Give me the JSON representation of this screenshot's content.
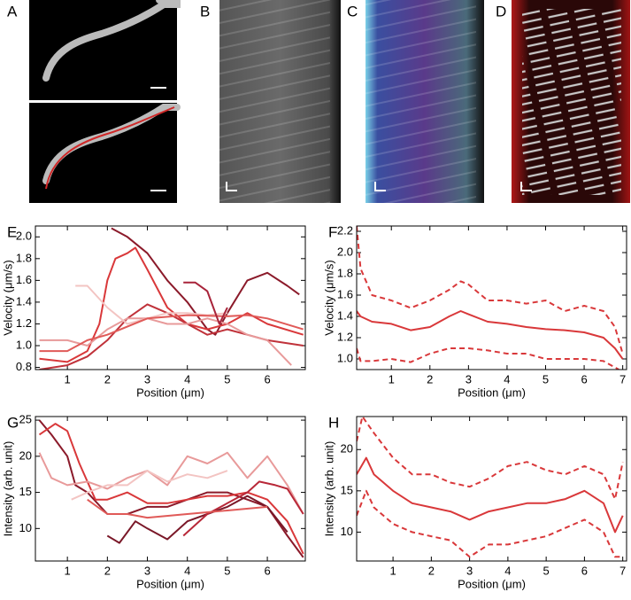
{
  "image_panels": [
    {
      "label": "A"
    },
    {
      "label": "B"
    },
    {
      "label": "C"
    },
    {
      "label": "D"
    }
  ],
  "chart_data": [
    {
      "type": "line",
      "panel": "E",
      "xlabel": "Position (μm)",
      "ylabel": "Velocity (μm/s)",
      "xlim": [
        0.2,
        6.95
      ],
      "xticks": [
        1,
        2,
        3,
        4,
        5,
        6
      ],
      "ylim": [
        0.78,
        2.1
      ],
      "yticks": [
        0.8,
        {
          "value": 1,
          "label": "1.0"
        },
        1.2,
        1.4,
        1.6,
        1.8,
        {
          "value": 2,
          "label": "2.0"
        }
      ],
      "series": [
        {
          "color": "#8b1a2a",
          "x": [
            2.1,
            2.5,
            3,
            3.5,
            4,
            4.5,
            4.7,
            5,
            5.5,
            6,
            6.5,
            6.8
          ],
          "values": [
            2.08,
            2.0,
            1.85,
            1.6,
            1.4,
            1.15,
            1.1,
            1.3,
            1.6,
            1.67,
            1.55,
            1.47
          ]
        },
        {
          "color": "#d9383a",
          "x": [
            0.3,
            1,
            1.5,
            1.8,
            2,
            2.2,
            2.5,
            2.7,
            3,
            3.5,
            4,
            4.5,
            5,
            5.5,
            6,
            6.9
          ],
          "values": [
            0.88,
            0.85,
            0.95,
            1.2,
            1.6,
            1.8,
            1.85,
            1.9,
            1.7,
            1.35,
            1.2,
            1.15,
            1.2,
            1.3,
            1.2,
            1.1
          ]
        },
        {
          "color": "#c0323a",
          "x": [
            0.3,
            1,
            1.5,
            2,
            2.5,
            3,
            3.5,
            4,
            4.5,
            5,
            5.5,
            6,
            6.9
          ],
          "values": [
            0.78,
            0.82,
            0.9,
            1.05,
            1.25,
            1.38,
            1.3,
            1.2,
            1.1,
            1.15,
            1.1,
            1.05,
            1.0
          ]
        },
        {
          "color": "#e89a9a",
          "x": [
            0.3,
            1,
            1.5,
            2,
            2.5,
            3,
            3.5,
            4,
            4.5,
            5,
            5.5,
            6,
            6.6
          ],
          "values": [
            1.05,
            1.05,
            1.0,
            1.15,
            1.25,
            1.25,
            1.2,
            1.2,
            1.25,
            1.2,
            1.1,
            1.05,
            0.82
          ]
        },
        {
          "color": "#f3c4c2",
          "x": [
            1.2,
            1.5,
            2,
            2.5,
            3,
            3.5,
            4,
            4.5,
            5
          ],
          "values": [
            1.55,
            1.55,
            1.35,
            1.2,
            1.25,
            1.3,
            1.3,
            1.28,
            1.3
          ]
        },
        {
          "color": "#e05a58",
          "x": [
            0.3,
            1,
            1.5,
            2,
            3,
            4,
            5,
            5.5,
            6,
            6.9
          ],
          "values": [
            0.95,
            0.95,
            1.05,
            1.1,
            1.25,
            1.28,
            1.27,
            1.28,
            1.25,
            1.15
          ]
        },
        {
          "color": "#a8243a",
          "x": [
            3.9,
            4.2,
            4.5,
            4.8,
            5
          ],
          "values": [
            1.58,
            1.58,
            1.5,
            1.2,
            1.35
          ]
        }
      ]
    },
    {
      "type": "line",
      "panel": "F",
      "xlabel": "Position (μm)",
      "ylabel": "Velocity (μm/s)",
      "xlim": [
        0.1,
        7.1
      ],
      "xticks": [
        1,
        2,
        3,
        4,
        5,
        6,
        7
      ],
      "ylim": [
        0.9,
        2.25
      ],
      "yticks": [
        {
          "value": 1,
          "label": "1.0"
        },
        1.2,
        1.4,
        1.6,
        1.8,
        {
          "value": 2,
          "label": "2.0"
        },
        2.2
      ],
      "series": [
        {
          "color": "#d9383a",
          "x": [
            0.1,
            0.2,
            0.5,
            1,
            1.5,
            2,
            2.5,
            2.8,
            3,
            3.5,
            4,
            4.5,
            5,
            5.5,
            6,
            6.5,
            6.8,
            7
          ],
          "values": [
            1.45,
            1.4,
            1.35,
            1.33,
            1.27,
            1.3,
            1.4,
            1.45,
            1.42,
            1.35,
            1.33,
            1.3,
            1.28,
            1.27,
            1.25,
            1.2,
            1.1,
            1.0
          ]
        },
        {
          "color": "#d9383a",
          "dashed": true,
          "x": [
            0.1,
            0.2,
            0.5,
            1,
            1.5,
            2,
            2.5,
            2.8,
            3,
            3.5,
            4,
            4.5,
            5,
            5.5,
            6,
            6.5,
            6.8,
            7
          ],
          "values": [
            2.25,
            1.85,
            1.6,
            1.55,
            1.48,
            1.55,
            1.65,
            1.73,
            1.7,
            1.55,
            1.55,
            1.52,
            1.55,
            1.45,
            1.5,
            1.45,
            1.3,
            1.05
          ]
        },
        {
          "color": "#d9383a",
          "dashed": true,
          "x": [
            0.1,
            0.2,
            0.5,
            1,
            1.5,
            2,
            2.5,
            3,
            3.5,
            4,
            4.5,
            5,
            5.5,
            6,
            6.5,
            6.9
          ],
          "values": [
            1.1,
            0.98,
            0.98,
            1.0,
            0.97,
            1.05,
            1.1,
            1.1,
            1.08,
            1.05,
            1.05,
            1.0,
            1.0,
            1.0,
            0.98,
            0.9
          ]
        }
      ]
    },
    {
      "type": "line",
      "panel": "G",
      "xlabel": "Position (μm)",
      "ylabel": "Intensity (arb. unit)",
      "xlim": [
        0.2,
        6.95
      ],
      "xticks": [
        1,
        2,
        3,
        4,
        5,
        6
      ],
      "ylim": [
        5.5,
        25.5
      ],
      "yticks": [
        10,
        15,
        20,
        25
      ],
      "series": [
        {
          "color": "#8b1a2a",
          "x": [
            0.3,
            0.6,
            1,
            1.2,
            1.5,
            2,
            2.5,
            3,
            3.5,
            4,
            4.5,
            5,
            5.5,
            6,
            6.5,
            6.9
          ],
          "values": [
            25,
            23,
            20,
            16,
            15,
            12,
            12,
            13,
            13,
            14,
            15,
            15,
            14,
            13,
            9,
            6
          ]
        },
        {
          "color": "#d9383a",
          "x": [
            0.3,
            0.7,
            1,
            1.3,
            1.7,
            2,
            2.5,
            3,
            3.5,
            4,
            4.5,
            5,
            5.5,
            6,
            6.5,
            6.9
          ],
          "values": [
            23,
            24.5,
            23.5,
            19,
            14,
            14,
            15,
            13.5,
            13.5,
            14,
            14.5,
            14.5,
            15,
            14,
            11,
            6.5
          ]
        },
        {
          "color": "#e89a9a",
          "x": [
            0.3,
            0.6,
            1,
            1.5,
            2,
            2.5,
            3,
            3.5,
            4,
            4.5,
            5,
            5.5,
            6,
            6.5,
            6.9
          ],
          "values": [
            20.5,
            17,
            16,
            16.5,
            15.5,
            17,
            18,
            16,
            20,
            19,
            20.5,
            17,
            20,
            16,
            12
          ]
        },
        {
          "color": "#f3c4c2",
          "x": [
            1.1,
            1.5,
            2,
            2.5,
            3,
            3.5,
            4,
            4.5,
            5
          ],
          "values": [
            14,
            15,
            16,
            16,
            18,
            16.5,
            17.5,
            17,
            18
          ]
        },
        {
          "color": "#7a1828",
          "x": [
            2,
            2.3,
            2.7,
            3,
            3.5,
            4,
            4.5,
            5,
            5.5,
            6,
            6.5
          ],
          "values": [
            9,
            8,
            11,
            10,
            8.5,
            11,
            12,
            13,
            14.5,
            13,
            9.5
          ]
        },
        {
          "color": "#b82838",
          "x": [
            3.9,
            4.5,
            5,
            5.5,
            5.8,
            6.2,
            6.5,
            6.9
          ],
          "values": [
            9,
            12,
            13.5,
            15,
            16.5,
            16,
            15.5,
            12
          ]
        },
        {
          "color": "#e05a58",
          "x": [
            1.5,
            2,
            2.5,
            3,
            4,
            5,
            6
          ],
          "values": [
            14,
            12,
            12,
            11.5,
            12,
            12.5,
            13
          ]
        }
      ]
    },
    {
      "type": "line",
      "panel": "H",
      "xlabel": "Position (μm)",
      "ylabel": "Intensity (arb. unit)",
      "xlim": [
        0.05,
        7.1
      ],
      "xticks": [
        1,
        2,
        3,
        4,
        5,
        6,
        7
      ],
      "ylim": [
        6.5,
        24
      ],
      "yticks": [
        10,
        15,
        20
      ],
      "series": [
        {
          "color": "#d9383a",
          "x": [
            0.05,
            0.3,
            0.5,
            1,
            1.5,
            2,
            2.5,
            3,
            3.5,
            4,
            4.5,
            5,
            5.5,
            6,
            6.5,
            6.8,
            7
          ],
          "values": [
            17,
            19,
            17,
            15,
            13.5,
            13,
            12.5,
            11.5,
            12.5,
            13,
            13.5,
            13.5,
            14,
            15,
            13.5,
            10,
            12
          ]
        },
        {
          "color": "#d9383a",
          "dashed": true,
          "x": [
            0.05,
            0.2,
            0.5,
            1,
            1.5,
            2,
            2.5,
            3,
            3.5,
            4,
            4.5,
            5,
            5.5,
            6,
            6.5,
            6.8,
            7
          ],
          "values": [
            21,
            24,
            22,
            19,
            17,
            17,
            16,
            15.5,
            16.5,
            18,
            18.5,
            17.5,
            17,
            18,
            17,
            14,
            18.5
          ]
        },
        {
          "color": "#d9383a",
          "dashed": true,
          "x": [
            0.05,
            0.3,
            0.5,
            1,
            1.5,
            2,
            2.5,
            3,
            3.5,
            4,
            4.5,
            5,
            5.5,
            6,
            6.5,
            6.8,
            7
          ],
          "values": [
            12,
            15,
            13,
            11,
            10,
            9.5,
            9,
            7,
            8.5,
            8.5,
            9,
            9.5,
            10.5,
            11.5,
            10,
            7,
            7
          ]
        }
      ]
    }
  ]
}
